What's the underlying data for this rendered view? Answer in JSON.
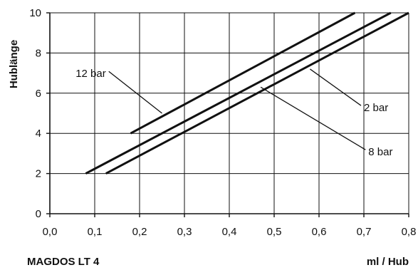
{
  "chart_data": {
    "type": "line",
    "title": "",
    "footer_left": "MAGDOS LT 4",
    "xlabel": "ml / Hub",
    "ylabel": "Hublänge",
    "xlim": [
      0.0,
      0.8
    ],
    "ylim": [
      0,
      10
    ],
    "x_ticks": [
      "0,0",
      "0,1",
      "0,2",
      "0,3",
      "0,4",
      "0,5",
      "0,6",
      "0,7",
      "0,8"
    ],
    "y_ticks": [
      "0",
      "2",
      "4",
      "6",
      "8",
      "10"
    ],
    "grid": true,
    "series": [
      {
        "name": "12 bar",
        "x": [
          0.18,
          0.68
        ],
        "y": [
          4,
          10
        ],
        "label_at": [
          0.125,
          6.8
        ],
        "leader_to": [
          0.25,
          5.0
        ]
      },
      {
        "name": "2 bar",
        "x": [
          0.08,
          0.76
        ],
        "y": [
          2,
          10
        ],
        "label_at": [
          0.7,
          5.1
        ],
        "leader_to": [
          0.58,
          7.2
        ]
      },
      {
        "name": "8 bar",
        "x": [
          0.125,
          0.8
        ],
        "y": [
          2,
          10
        ],
        "label_at": [
          0.71,
          2.9
        ],
        "leader_to": [
          0.47,
          6.3
        ]
      }
    ]
  }
}
